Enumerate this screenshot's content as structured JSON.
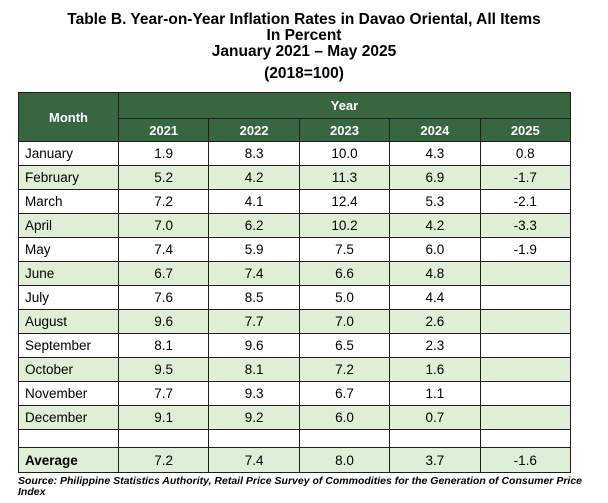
{
  "title": {
    "line1": "Table B. Year-on-Year Inflation Rates in Davao Oriental, All Items",
    "line2": "In Percent",
    "line3": "January 2021 – May 2025",
    "line4": "(2018=100)"
  },
  "table": {
    "month_header": "Month",
    "year_header": "Year",
    "years": [
      "2021",
      "2022",
      "2023",
      "2024",
      "2025"
    ],
    "rows": [
      {
        "month": "January",
        "values": [
          "1.9",
          "8.3",
          "10.0",
          "4.3",
          "0.8"
        ]
      },
      {
        "month": "February",
        "values": [
          "5.2",
          "4.2",
          "11.3",
          "6.9",
          "-1.7"
        ]
      },
      {
        "month": "March",
        "values": [
          "7.2",
          "4.1",
          "12.4",
          "5.3",
          "-2.1"
        ]
      },
      {
        "month": "April",
        "values": [
          "7.0",
          "6.2",
          "10.2",
          "4.2",
          "-3.3"
        ]
      },
      {
        "month": "May",
        "values": [
          "7.4",
          "5.9",
          "7.5",
          "6.0",
          "-1.9"
        ]
      },
      {
        "month": "June",
        "values": [
          "6.7",
          "7.4",
          "6.6",
          "4.8",
          ""
        ]
      },
      {
        "month": "July",
        "values": [
          "7.6",
          "8.5",
          "5.0",
          "4.4",
          ""
        ]
      },
      {
        "month": "August",
        "values": [
          "9.6",
          "7.7",
          "7.0",
          "2.6",
          ""
        ]
      },
      {
        "month": "September",
        "values": [
          "8.1",
          "9.6",
          "6.5",
          "2.3",
          ""
        ]
      },
      {
        "month": "October",
        "values": [
          "9.5",
          "8.1",
          "7.2",
          "1.6",
          ""
        ]
      },
      {
        "month": "November",
        "values": [
          "7.7",
          "9.3",
          "6.7",
          "1.1",
          ""
        ]
      },
      {
        "month": "December",
        "values": [
          "9.1",
          "9.2",
          "6.0",
          "0.7",
          ""
        ]
      }
    ],
    "average": {
      "label": "Average",
      "values": [
        "7.2",
        "7.4",
        "8.0",
        "3.7",
        "-1.6"
      ]
    }
  },
  "source": "Source: Philippine Statistics Authority, Retail Price Survey of Commodities for the Generation of Consumer Price Index",
  "colors": {
    "header_bg": "#386641",
    "alt_row_bg": "#dfefd7"
  }
}
